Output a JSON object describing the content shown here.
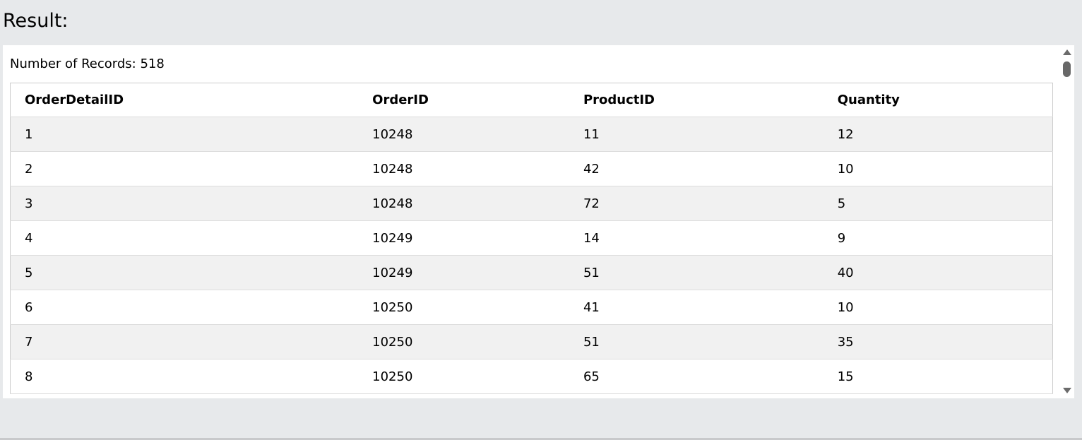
{
  "title": "Result:",
  "record_count_text": "Number of Records: 518",
  "table": {
    "headers": [
      "OrderDetailID",
      "OrderID",
      "ProductID",
      "Quantity"
    ],
    "rows": [
      [
        "1",
        "10248",
        "11",
        "12"
      ],
      [
        "2",
        "10248",
        "42",
        "10"
      ],
      [
        "3",
        "10248",
        "72",
        "5"
      ],
      [
        "4",
        "10249",
        "14",
        "9"
      ],
      [
        "5",
        "10249",
        "51",
        "40"
      ],
      [
        "6",
        "10250",
        "41",
        "10"
      ],
      [
        "7",
        "10250",
        "51",
        "35"
      ],
      [
        "8",
        "10250",
        "65",
        "15"
      ]
    ]
  },
  "icons": {
    "scroll_up": "triangle-up-icon",
    "scroll_down": "triangle-down-icon"
  },
  "colors": {
    "page_bg": "#e7e9eb",
    "panel_bg": "#ffffff",
    "row_alt_bg": "#f1f1f1",
    "scrollbar_thumb": "#686868"
  }
}
